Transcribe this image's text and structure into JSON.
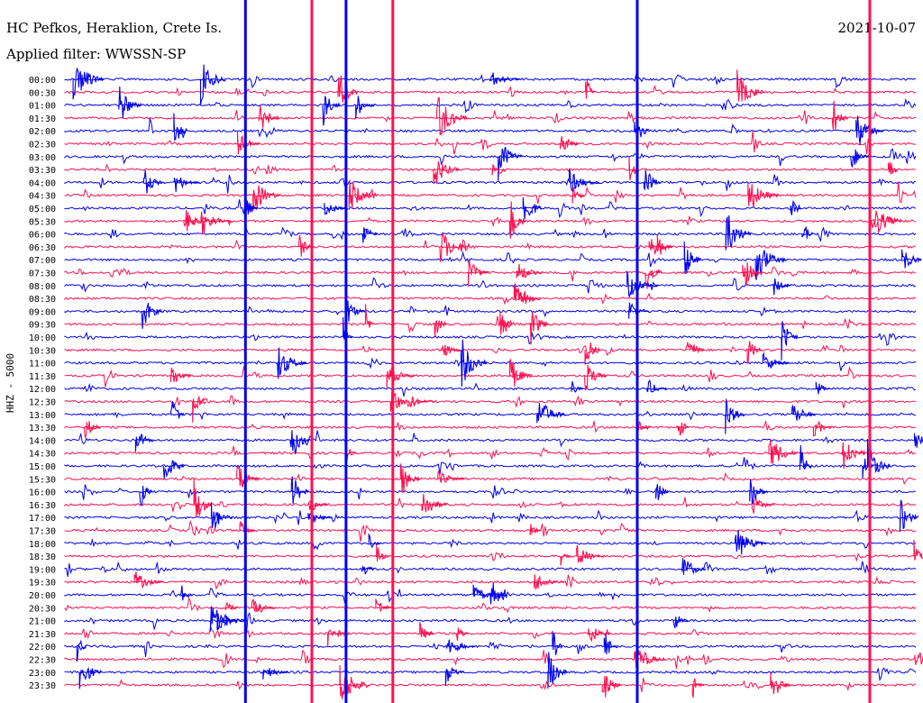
{
  "header": {
    "station": "HC Pefkos, Heraklion, Crete Is.",
    "filter": "Applied filter: WWSSN-SP",
    "date": "2021-10-07"
  },
  "colors": {
    "background": "#ffffff",
    "trace_a": "#0000ee",
    "trace_b": "#ff1050",
    "text": "#000000"
  },
  "chart_data": {
    "type": "line",
    "title": "HC Pefkos, Heraklion, Crete Is.",
    "subtitle": "Applied filter: WWSSN-SP",
    "date": "2021-10-07",
    "ylabel": "HHZ - 5000",
    "xlabel": "",
    "row_labels": [
      "00:00",
      "00:30",
      "01:00",
      "01:30",
      "02:00",
      "02:30",
      "03:00",
      "03:30",
      "04:00",
      "04:30",
      "05:00",
      "05:30",
      "06:00",
      "06:30",
      "07:00",
      "07:30",
      "08:00",
      "08:30",
      "09:00",
      "09:30",
      "10:00",
      "10:30",
      "11:00",
      "11:30",
      "12:00",
      "12:30",
      "13:00",
      "13:30",
      "14:00",
      "14:30",
      "15:00",
      "15:30",
      "16:00",
      "16:30",
      "17:00",
      "17:30",
      "18:00",
      "18:30",
      "19:00",
      "19:30",
      "20:00",
      "20:30",
      "21:00",
      "21:30",
      "22:00",
      "22:30",
      "23:00",
      "23:30"
    ],
    "row_minutes": 30,
    "series_colors": [
      "blue",
      "red"
    ],
    "color_pattern": "alternating",
    "full_height_events_fraction": [
      0.212,
      0.29,
      0.33,
      0.385,
      0.672,
      0.945
    ],
    "grid": false
  }
}
